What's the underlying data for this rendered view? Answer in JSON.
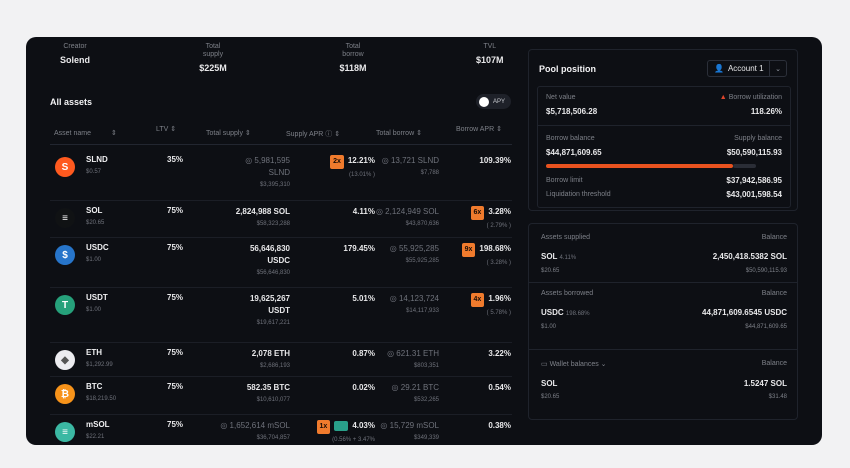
{
  "stats": [
    {
      "label": "Creator",
      "value": "Solend"
    },
    {
      "label": "Total supply",
      "value": "$225M"
    },
    {
      "label": "Total borrow",
      "value": "$118M"
    },
    {
      "label": "TVL",
      "value": "$107M"
    }
  ],
  "all_assets": "All assets",
  "apy_toggle": "APY",
  "columns": [
    "Asset name",
    "LTV",
    "Total supply",
    "Supply APR",
    "Total borrow",
    "Borrow APR"
  ],
  "assets": [
    {
      "symbol": "SLND",
      "price": "$0.57",
      "ltv": "35%",
      "supply": "5,981,595",
      "supply_unit": "SLND",
      "supply_usd": "$3,395,310",
      "supply_badge": "2x",
      "supply_apr": "12.21%",
      "supply_apr_sub": "(13.01% )",
      "borrow": "13,721 SLND",
      "borrow_usd": "$7,788",
      "borrow_badge": "",
      "borrow_apr": "109.39%",
      "borrow_apr_sub": "",
      "color": "#ff5a1f",
      "glyph": "S"
    },
    {
      "symbol": "SOL",
      "price": "$20.65",
      "ltv": "75%",
      "supply": "2,824,988 SOL",
      "supply_unit": "",
      "supply_usd": "$58,323,288",
      "supply_badge": "",
      "supply_apr": "4.11%",
      "supply_apr_sub": "",
      "borrow": "2,124,949 SOL",
      "borrow_usd": "$43,870,636",
      "borrow_badge": "6x",
      "borrow_apr": "3.28%",
      "borrow_apr_sub": "( 2.79% )",
      "color": "#101214",
      "glyph": "≡"
    },
    {
      "symbol": "USDC",
      "price": "$1.00",
      "ltv": "75%",
      "supply": "56,646,830",
      "supply_unit": "USDC",
      "supply_usd": "$56,646,830",
      "supply_badge": "",
      "supply_apr": "179.45%",
      "supply_apr_sub": "",
      "borrow": "55,925,285",
      "borrow_usd": "$55,925,285",
      "borrow_badge": "9x",
      "borrow_apr": "198.68%",
      "borrow_apr_sub": "( 3.28% )",
      "color": "#2775ca",
      "glyph": "$"
    },
    {
      "symbol": "USDT",
      "price": "$1.00",
      "ltv": "75%",
      "supply": "19,625,267",
      "supply_unit": "USDT",
      "supply_usd": "$19,617,221",
      "supply_badge": "",
      "supply_apr": "5.01%",
      "supply_apr_sub": "",
      "borrow": "14,123,724",
      "borrow_usd": "$14,117,933",
      "borrow_badge": "4x",
      "borrow_apr": "1.96%",
      "borrow_apr_sub": "( 5.78% )",
      "color": "#26a17b",
      "glyph": "T"
    },
    {
      "symbol": "ETH",
      "price": "$1,292.99",
      "ltv": "75%",
      "supply": "2,078 ETH",
      "supply_unit": "",
      "supply_usd": "$2,686,193",
      "supply_badge": "",
      "supply_apr": "0.87%",
      "supply_apr_sub": "",
      "borrow": "621.31 ETH",
      "borrow_usd": "$803,351",
      "borrow_badge": "",
      "borrow_apr": "3.22%",
      "borrow_apr_sub": "",
      "color": "#ececf0",
      "glyph": "◆"
    },
    {
      "symbol": "BTC",
      "price": "$18,219.50",
      "ltv": "75%",
      "supply": "582.35 BTC",
      "supply_unit": "",
      "supply_usd": "$10,610,077",
      "supply_badge": "",
      "supply_apr": "0.02%",
      "supply_apr_sub": "",
      "borrow": "29.21 BTC",
      "borrow_usd": "$532,265",
      "borrow_badge": "",
      "borrow_apr": "0.54%",
      "borrow_apr_sub": "",
      "color": "#f7931a",
      "glyph": "₿"
    },
    {
      "symbol": "mSOL",
      "price": "$22.21",
      "ltv": "75%",
      "supply": "1,652,614 mSOL",
      "supply_unit": "",
      "supply_usd": "$36,704,857",
      "supply_badge": "1x",
      "supply_apr": "4.03%",
      "supply_apr_sub": "(0.56% + 3.47%",
      "borrow": "15,729 mSOL",
      "borrow_usd": "$349,339",
      "borrow_badge": "",
      "borrow_apr": "0.38%",
      "borrow_apr_sub": "",
      "color": "#3bb8a3",
      "glyph": "≡"
    }
  ],
  "pool": {
    "title": "Pool position",
    "account": "Account 1",
    "net_value_label": "Net value",
    "net_value": "$5,718,506.28",
    "borrow_util_label": "Borrow utilization",
    "borrow_util": "118.26%",
    "borrow_balance_label": "Borrow balance",
    "borrow_balance": "$44,871,609.65",
    "supply_balance_label": "Supply balance",
    "supply_balance": "$50,590,115.93",
    "borrow_limit_label": "Borrow limit",
    "borrow_limit": "$37,942,586.95",
    "liq_label": "Liquidation threshold",
    "liq": "$43,001,598.54",
    "utilization_fraction": 0.89
  },
  "supplied": {
    "header": "Assets supplied",
    "balance_label": "Balance",
    "symbol": "SOL",
    "apr": "4.11%",
    "price": "$20.65",
    "amount": "2,450,418.5382 SOL",
    "usd": "$50,590,115.93"
  },
  "borrowed": {
    "header": "Assets borrowed",
    "balance_label": "Balance",
    "symbol": "USDC",
    "apr": "198.68%",
    "price": "$1.00",
    "amount": "44,871,609.6545 USDC",
    "usd": "$44,871,609.65"
  },
  "wallet": {
    "header": "Wallet balances",
    "balance_label": "Balance",
    "symbol": "SOL",
    "price": "$20.65",
    "amount": "1.5247 SOL",
    "usd": "$31.48"
  }
}
